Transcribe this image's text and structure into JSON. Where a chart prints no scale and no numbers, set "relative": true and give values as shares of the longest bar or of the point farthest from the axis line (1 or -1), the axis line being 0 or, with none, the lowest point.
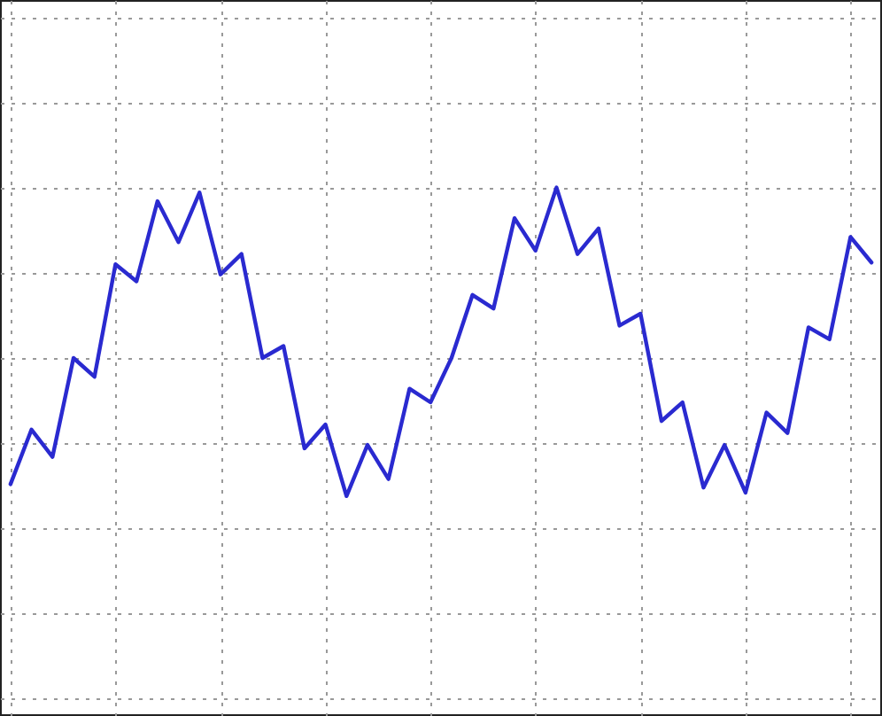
{
  "chart_data": {
    "type": "line",
    "relative": true,
    "grid": true,
    "categories": [
      null,
      null,
      null,
      null,
      null,
      null,
      null,
      null,
      null,
      null,
      null,
      null,
      null,
      null,
      null,
      null,
      null,
      null,
      null,
      null,
      null,
      null,
      null,
      null,
      null,
      null,
      null,
      null,
      null,
      null,
      null,
      null,
      null,
      null,
      null,
      null,
      null,
      null,
      null,
      null,
      null,
      null
    ],
    "series": [
      {
        "color": "#2a2ad0",
        "values": [
          -0.74,
          -0.42,
          -0.58,
          0,
          -0.11,
          0.55,
          0.45,
          0.92,
          0.68,
          0.97,
          0.49,
          0.61,
          0,
          0.07,
          -0.53,
          -0.39,
          -0.81,
          -0.51,
          -0.71,
          -0.18,
          -0.26,
          0,
          0.37,
          0.29,
          0.82,
          0.63,
          1,
          0.61,
          0.76,
          0.19,
          0.26,
          -0.37,
          -0.26,
          -0.76,
          -0.51,
          -0.79,
          -0.32,
          -0.44,
          0.18,
          0.11,
          0.71,
          0.56
        ]
      }
    ]
  }
}
